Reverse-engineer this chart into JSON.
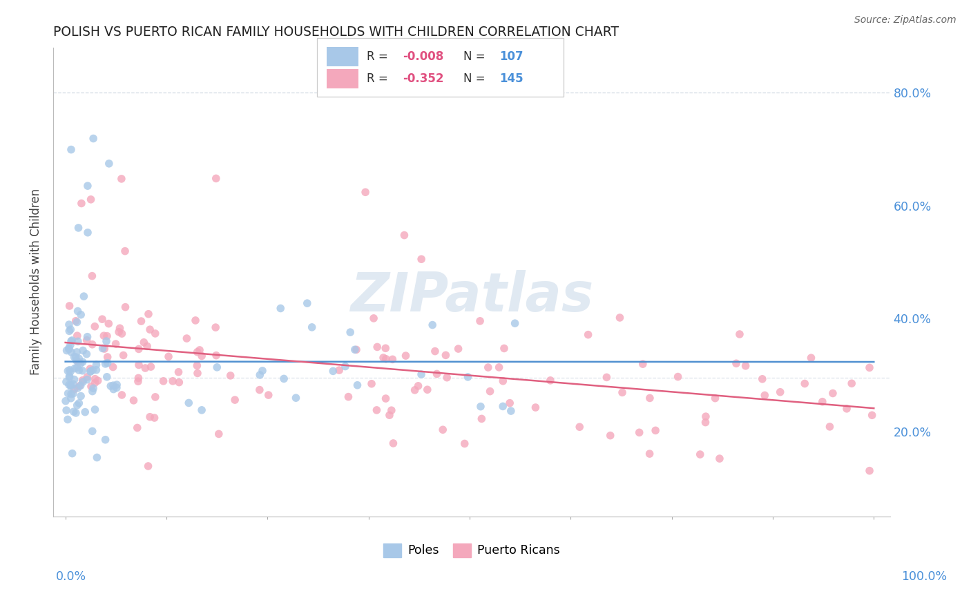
{
  "title": "POLISH VS PUERTO RICAN FAMILY HOUSEHOLDS WITH CHILDREN CORRELATION CHART",
  "source": "Source: ZipAtlas.com",
  "ylabel": "Family Households with Children",
  "ytick_labels": [
    "20.0%",
    "40.0%",
    "60.0%",
    "80.0%"
  ],
  "ytick_vals": [
    0.2,
    0.4,
    0.6,
    0.8
  ],
  "polish_color": "#a8c8e8",
  "puerto_rican_color": "#f4a8bc",
  "polish_line_color": "#5090d0",
  "puerto_rican_line_color": "#e06080",
  "watermark": "ZIPatlas",
  "background_color": "#ffffff",
  "legend_box_color": "#ffffff",
  "legend_border_color": "#cccccc"
}
